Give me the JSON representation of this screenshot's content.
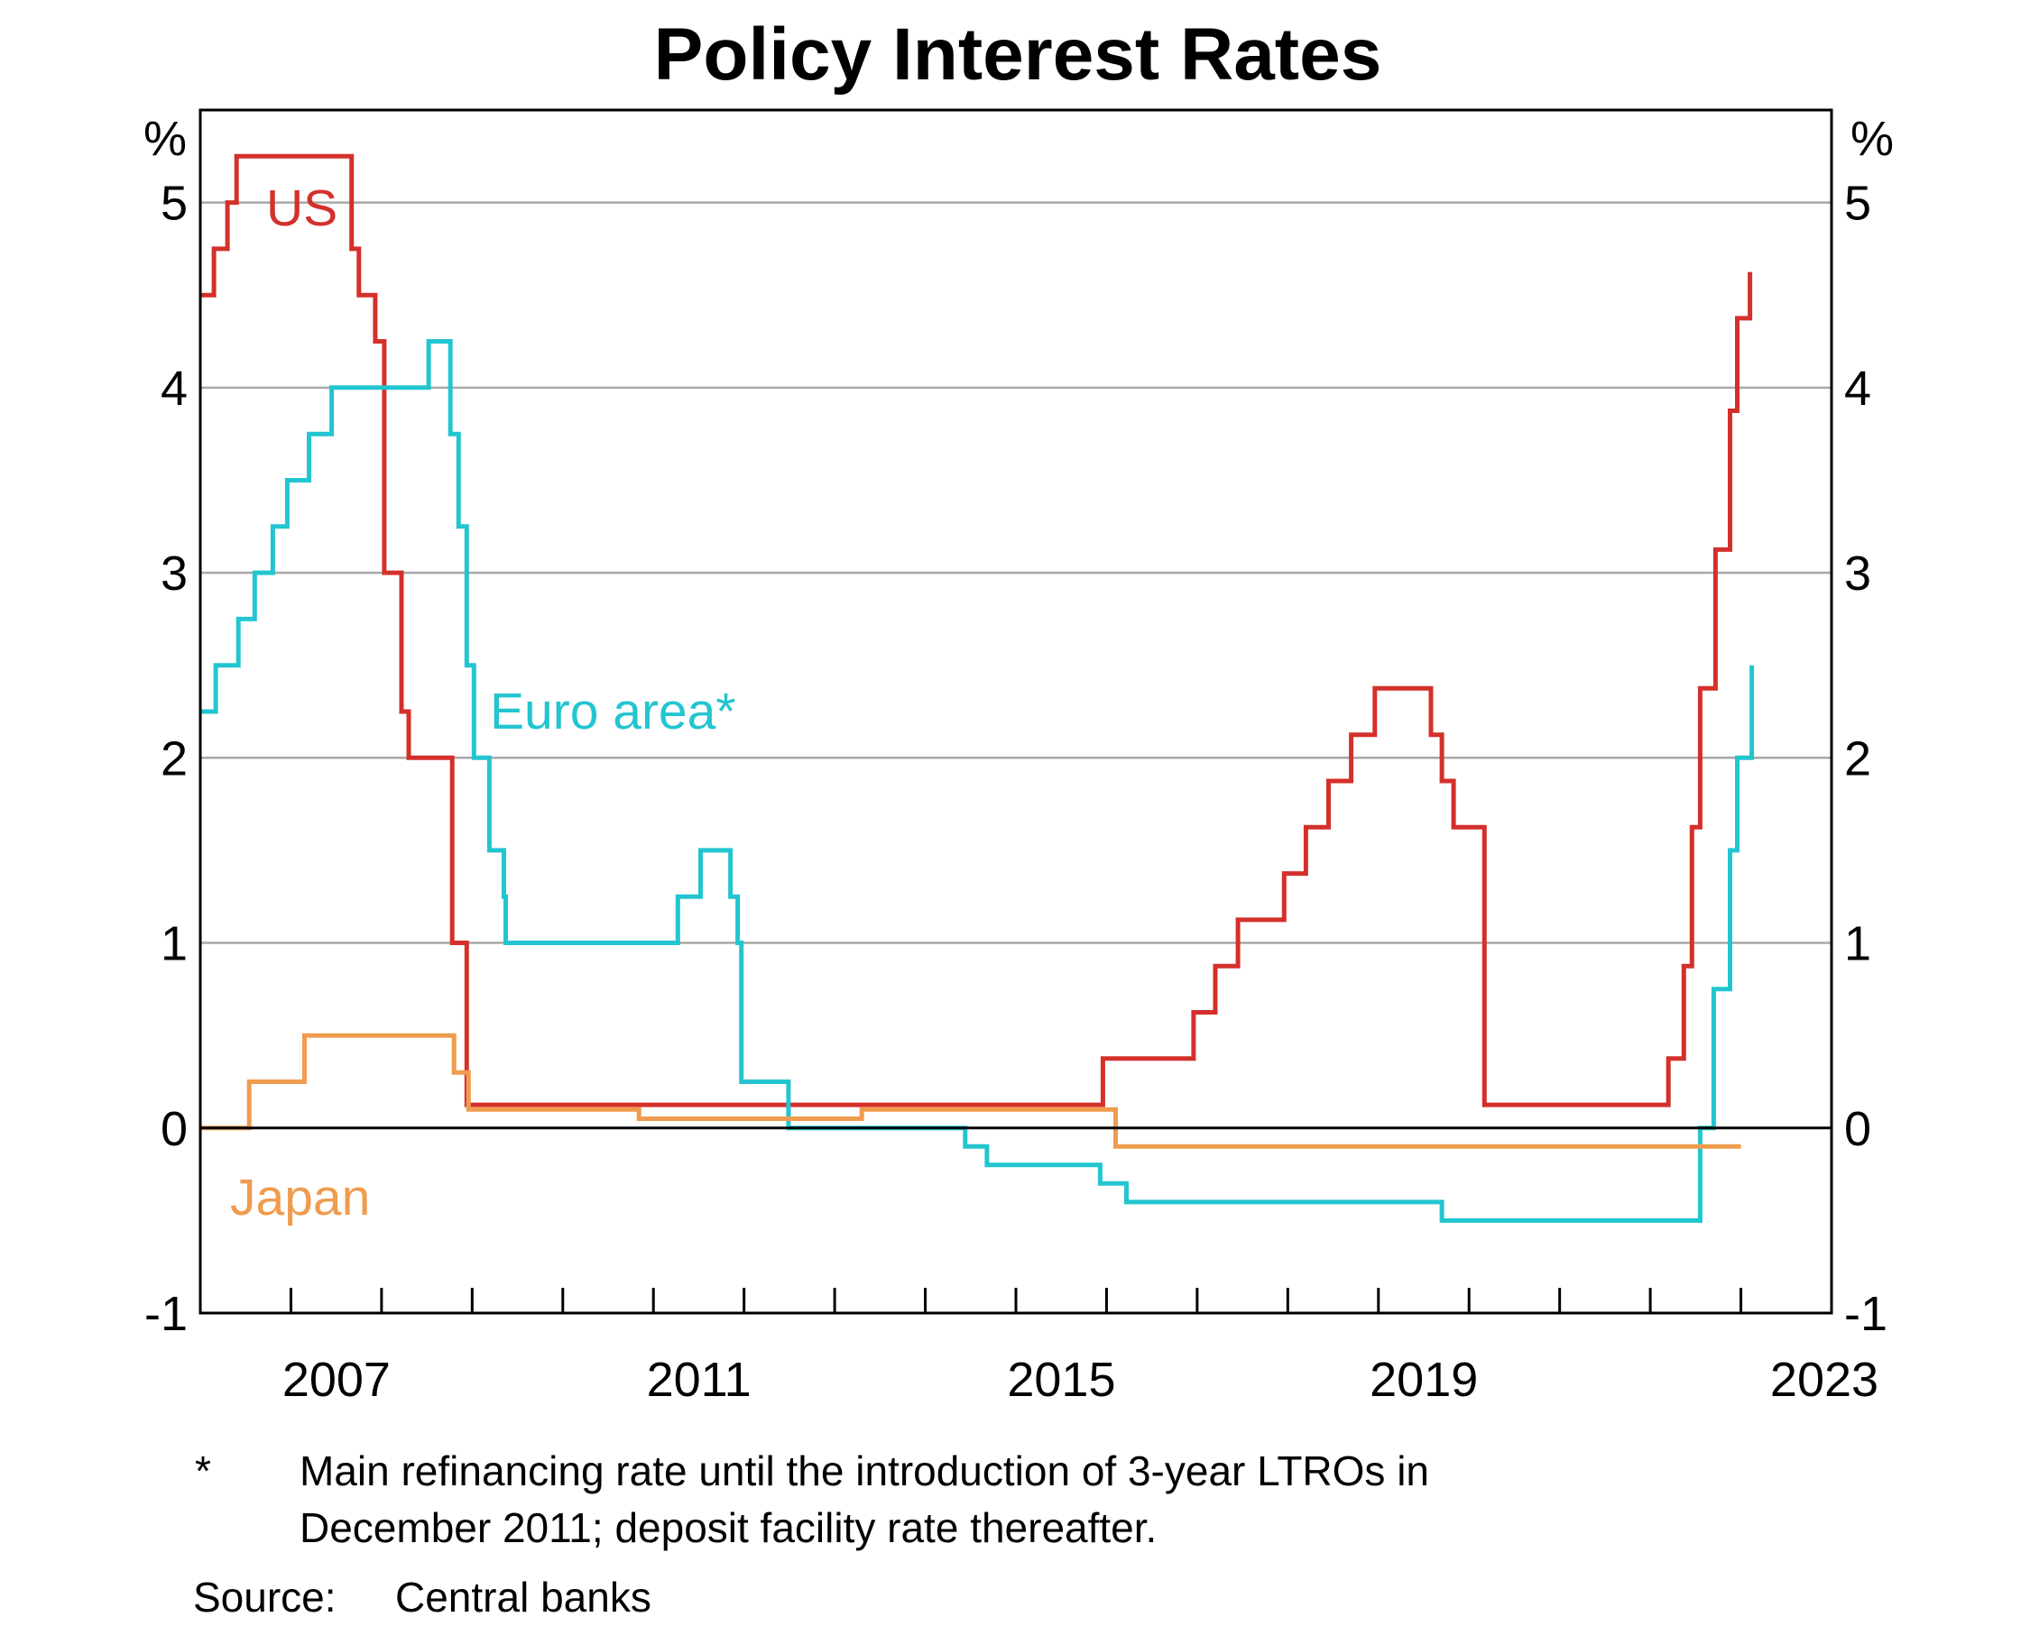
{
  "chart_data": {
    "type": "line",
    "step": true,
    "title": "Policy Interest Rates",
    "y_unit_left": "%",
    "y_unit_right": "%",
    "ylim": [
      -1,
      5.5
    ],
    "y_ticks": [
      -1,
      0,
      1,
      2,
      3,
      4,
      5
    ],
    "xlim": [
      2006.0,
      2024.0
    ],
    "x_tick_labels": [
      "2007",
      "2011",
      "2015",
      "2019",
      "2023"
    ],
    "x_tick_label_values": [
      2008.0,
      2012.0,
      2016.0,
      2020.0,
      2024.0
    ],
    "grid": true,
    "series": [
      {
        "name": "US",
        "color": "#d4302b",
        "points": [
          [
            2006.0,
            4.5
          ],
          [
            2006.15,
            4.75
          ],
          [
            2006.3,
            5.0
          ],
          [
            2006.4,
            5.25
          ],
          [
            2007.67,
            4.75
          ],
          [
            2007.75,
            4.5
          ],
          [
            2007.93,
            4.25
          ],
          [
            2008.03,
            3.0
          ],
          [
            2008.22,
            2.25
          ],
          [
            2008.3,
            2.0
          ],
          [
            2008.78,
            1.0
          ],
          [
            2008.94,
            0.125
          ],
          [
            2015.96,
            0.375
          ],
          [
            2016.96,
            0.625
          ],
          [
            2017.2,
            0.875
          ],
          [
            2017.45,
            1.125
          ],
          [
            2017.96,
            1.375
          ],
          [
            2018.2,
            1.625
          ],
          [
            2018.45,
            1.875
          ],
          [
            2018.7,
            2.125
          ],
          [
            2018.96,
            2.375
          ],
          [
            2019.58,
            2.125
          ],
          [
            2019.7,
            1.875
          ],
          [
            2019.83,
            1.625
          ],
          [
            2020.17,
            0.125
          ],
          [
            2022.2,
            0.375
          ],
          [
            2022.37,
            0.875
          ],
          [
            2022.46,
            1.625
          ],
          [
            2022.55,
            2.375
          ],
          [
            2022.72,
            3.125
          ],
          [
            2022.88,
            3.875
          ],
          [
            2022.96,
            4.375
          ],
          [
            2023.1,
            4.625
          ]
        ]
      },
      {
        "name": "Euro area*",
        "color": "#22c5d0",
        "points": [
          [
            2006.0,
            2.25
          ],
          [
            2006.17,
            2.5
          ],
          [
            2006.42,
            2.75
          ],
          [
            2006.6,
            3.0
          ],
          [
            2006.8,
            3.25
          ],
          [
            2006.96,
            3.5
          ],
          [
            2007.2,
            3.75
          ],
          [
            2007.45,
            4.0
          ],
          [
            2008.52,
            4.25
          ],
          [
            2008.76,
            3.75
          ],
          [
            2008.85,
            3.25
          ],
          [
            2008.94,
            2.5
          ],
          [
            2009.02,
            2.0
          ],
          [
            2009.19,
            1.5
          ],
          [
            2009.35,
            1.25
          ],
          [
            2009.37,
            1.0
          ],
          [
            2011.27,
            1.25
          ],
          [
            2011.52,
            1.5
          ],
          [
            2011.85,
            1.25
          ],
          [
            2011.93,
            1.0
          ],
          [
            2011.97,
            0.25
          ],
          [
            2012.49,
            0.0
          ],
          [
            2014.44,
            -0.1
          ],
          [
            2014.68,
            -0.2
          ],
          [
            2015.93,
            -0.3
          ],
          [
            2016.22,
            -0.4
          ],
          [
            2019.7,
            -0.5
          ],
          [
            2022.55,
            0.0
          ],
          [
            2022.7,
            0.75
          ],
          [
            2022.88,
            1.5
          ],
          [
            2022.96,
            2.0
          ],
          [
            2023.12,
            2.5
          ]
        ]
      },
      {
        "name": "Japan",
        "color": "#ef9c4e",
        "points": [
          [
            2006.0,
            0.0
          ],
          [
            2006.54,
            0.25
          ],
          [
            2007.15,
            0.5
          ],
          [
            2008.8,
            0.3
          ],
          [
            2008.96,
            0.1
          ],
          [
            2010.84,
            0.05
          ],
          [
            2013.3,
            0.1
          ],
          [
            2016.1,
            -0.1
          ],
          [
            2023.0,
            -0.1
          ]
        ]
      }
    ]
  },
  "footnotes": {
    "asterisk": "*",
    "note_line1": "Main refinancing rate until the introduction of 3-year LTROs in",
    "note_line2": "December 2011; deposit facility rate thereafter.",
    "source_label": "Source:",
    "source_text": "Central banks"
  }
}
